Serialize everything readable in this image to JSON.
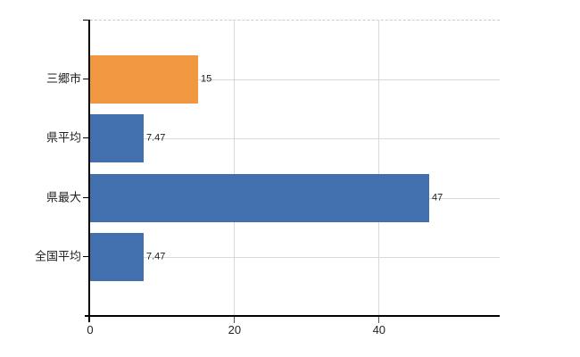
{
  "chart_data": {
    "type": "bar",
    "orientation": "horizontal",
    "title": "",
    "xlabel": "",
    "ylabel": "",
    "categories": [
      "三郷市",
      "県平均",
      "県最大",
      "全国平均"
    ],
    "values": [
      15,
      7.47,
      47,
      7.47
    ],
    "value_labels": [
      "15",
      "7.47",
      "47",
      "7.47"
    ],
    "bar_colors": [
      "#f0973f",
      "#4270af",
      "#4270af",
      "#4270af"
    ],
    "x_ticks": [
      0,
      20,
      40
    ],
    "x_tick_labels": [
      "0",
      "20",
      "40"
    ],
    "xlim": [
      0,
      56.7
    ],
    "grid": "on",
    "legend": "none",
    "colors": {
      "grid": "#d9d9d9",
      "axis": "#000000",
      "top_border": "#cccccc",
      "label": "#222222",
      "bar_blue": "#4270af",
      "bar_orange": "#f0973f"
    }
  }
}
